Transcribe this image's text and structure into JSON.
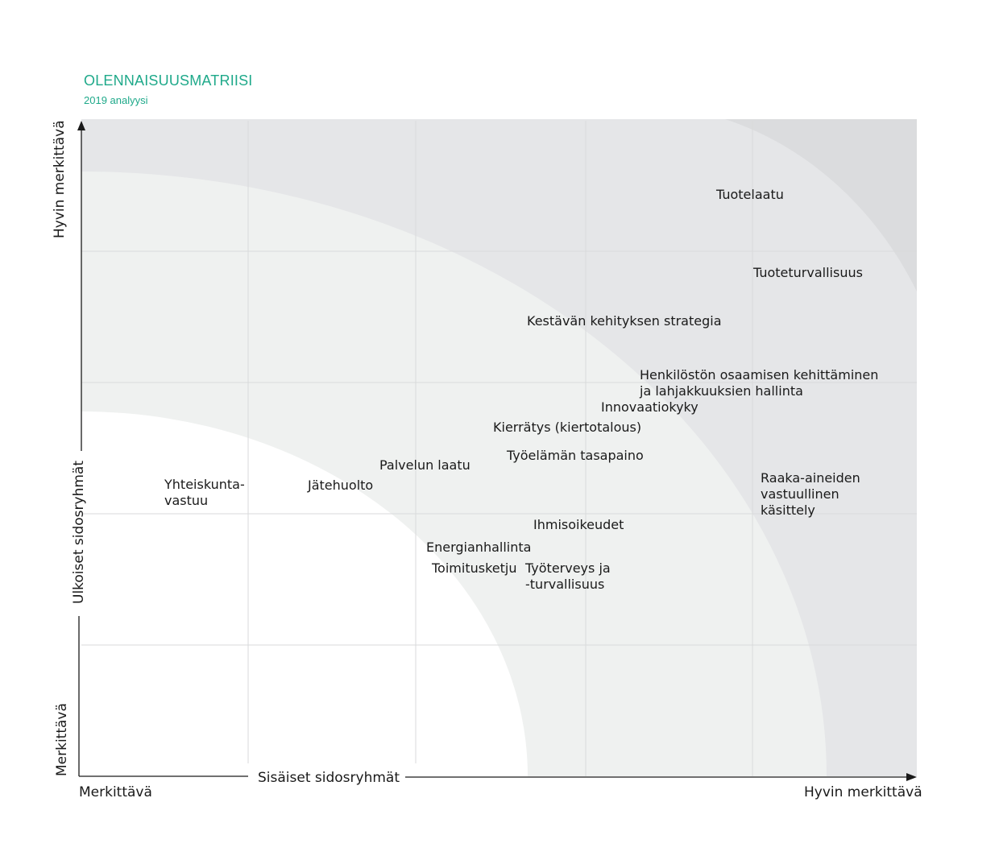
{
  "header": {
    "title": "OLENNAISUUSMATRIISI",
    "subtitle": "2019 analyysi"
  },
  "axes": {
    "x_title": "Sisäiset sidosryhmät",
    "x_low": "Merkittävä",
    "x_high": "Hyvin merkittävä",
    "y_title": "Ulkoiset sidosryhmät",
    "y_low": "Merkittävä",
    "y_high": "Hyvin merkittävä"
  },
  "colors": {
    "zone_low": "#ffffff",
    "zone_mid": "#eff1f0",
    "zone_high": "#e5e6e8",
    "zone_top": "#dbdcde",
    "grid": "#d9dadb",
    "accent": "#1fa98a",
    "axis": "#1a1a1a"
  },
  "topics": [
    "Tuotelaatu",
    "Tuoteturvallisuus",
    "Kestävän kehityksen strategia",
    "Henkilöstön osaamisen kehittäminen\nja lahjakkuuksien hallinta",
    "Innovaatiokyky",
    "Kierrätys (kiertotalous)",
    "Työelämän tasapaino",
    "Palvelun laatu",
    "Yhteiskunta-\nvastuu",
    "Jätehuolto",
    "Raaka-aineiden\nvastuullinen\nkäsittely",
    "Ihmisoikeudet",
    "Energianhallinta",
    "Toimitusketju",
    "Työterveys ja\n-turvallisuus"
  ]
}
